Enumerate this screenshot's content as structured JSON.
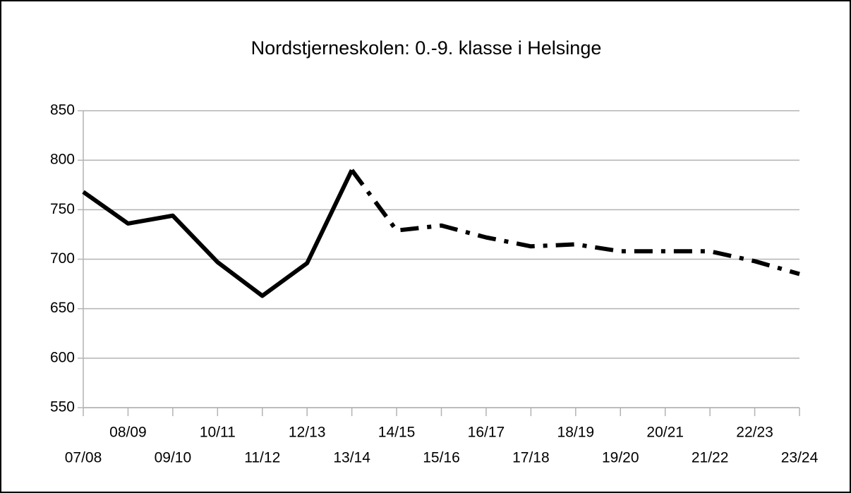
{
  "chart_data": {
    "type": "line",
    "title": "Nordstjerneskolen: 0.-9. klasse i Helsinge",
    "categories": [
      "07/08",
      "08/09",
      "09/10",
      "10/11",
      "11/12",
      "12/13",
      "13/14",
      "14/15",
      "15/16",
      "16/17",
      "17/18",
      "18/19",
      "19/20",
      "20/21",
      "21/22",
      "22/23",
      "23/24"
    ],
    "series": [
      {
        "color": "#000000",
        "dash": "solid",
        "values": [
          768,
          736,
          744,
          697,
          663,
          696,
          790,
          null,
          null,
          null,
          null,
          null,
          null,
          null,
          null,
          null,
          null
        ]
      },
      {
        "color": "#000000",
        "dash": "dashdot",
        "values": [
          null,
          null,
          null,
          null,
          null,
          null,
          790,
          729,
          734,
          722,
          713,
          715,
          708,
          708,
          708,
          698,
          685
        ]
      }
    ],
    "ylim": [
      550,
      850
    ],
    "yticks": [
      550,
      600,
      650,
      700,
      750,
      800,
      850
    ],
    "grid": true
  }
}
